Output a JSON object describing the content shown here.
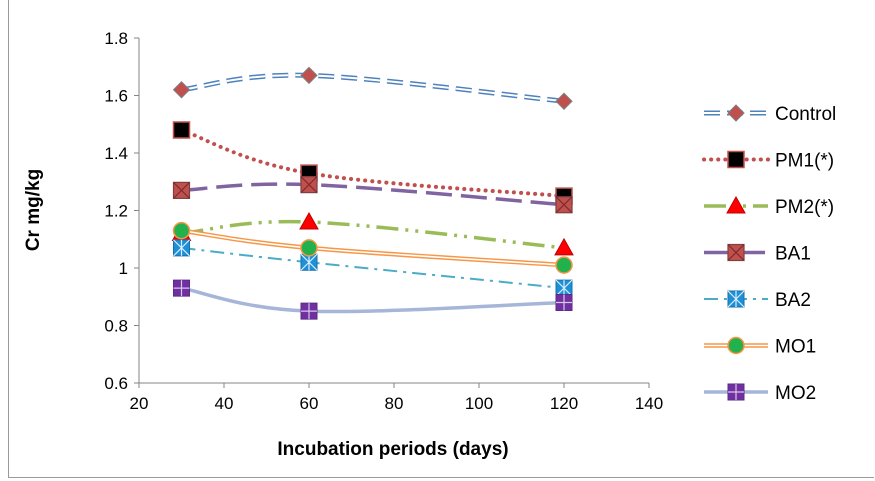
{
  "chart_data": {
    "type": "line",
    "xlabel": "Incubation periods (days)",
    "ylabel": "Cr mg/kg",
    "xlim": [
      20,
      140
    ],
    "ylim": [
      0.6,
      1.8
    ],
    "x_ticks": [
      "20",
      "40",
      "60",
      "80",
      "100",
      "120",
      "140"
    ],
    "y_ticks": [
      "0.6",
      "0.8",
      "1",
      "1.2",
      "1.4",
      "1.6",
      "1.8"
    ],
    "x": [
      30,
      60,
      120
    ],
    "grid": false,
    "legend_position": "right",
    "series": [
      {
        "name": "Control",
        "values": [
          1.62,
          1.67,
          1.58
        ],
        "line_color": "#4f81bd",
        "marker_color": "#c0504d",
        "marker": "diamond",
        "style": "double-dash"
      },
      {
        "name": "PM1(*)",
        "values": [
          1.48,
          1.33,
          1.25
        ],
        "line_color": "#c0504d",
        "marker_color": "#000000",
        "marker": "square",
        "style": "dotted"
      },
      {
        "name": "PM2(*)",
        "values": [
          1.12,
          1.16,
          1.07
        ],
        "line_color": "#9bbb59",
        "marker_color": "#ff0000",
        "marker": "triangle",
        "style": "dash-dot-dot"
      },
      {
        "name": "BA1",
        "values": [
          1.27,
          1.29,
          1.22
        ],
        "line_color": "#8064a2",
        "marker_color": "#c0504d",
        "marker": "x-square",
        "style": "long-dash"
      },
      {
        "name": "BA2",
        "values": [
          1.07,
          1.02,
          0.93
        ],
        "line_color": "#4bacc6",
        "marker_color": "#1f8fd6",
        "marker": "asterisk-square",
        "style": "dash-dot"
      },
      {
        "name": "MO1",
        "values": [
          1.13,
          1.07,
          1.01
        ],
        "line_color": "#f79646",
        "marker_color": "#22b14c",
        "marker": "circle",
        "style": "double-solid"
      },
      {
        "name": "MO2",
        "values": [
          0.93,
          0.85,
          0.88
        ],
        "line_color": "#a6b6d9",
        "marker_color": "#7030a0",
        "marker": "plus-square",
        "style": "solid-thick"
      }
    ]
  }
}
